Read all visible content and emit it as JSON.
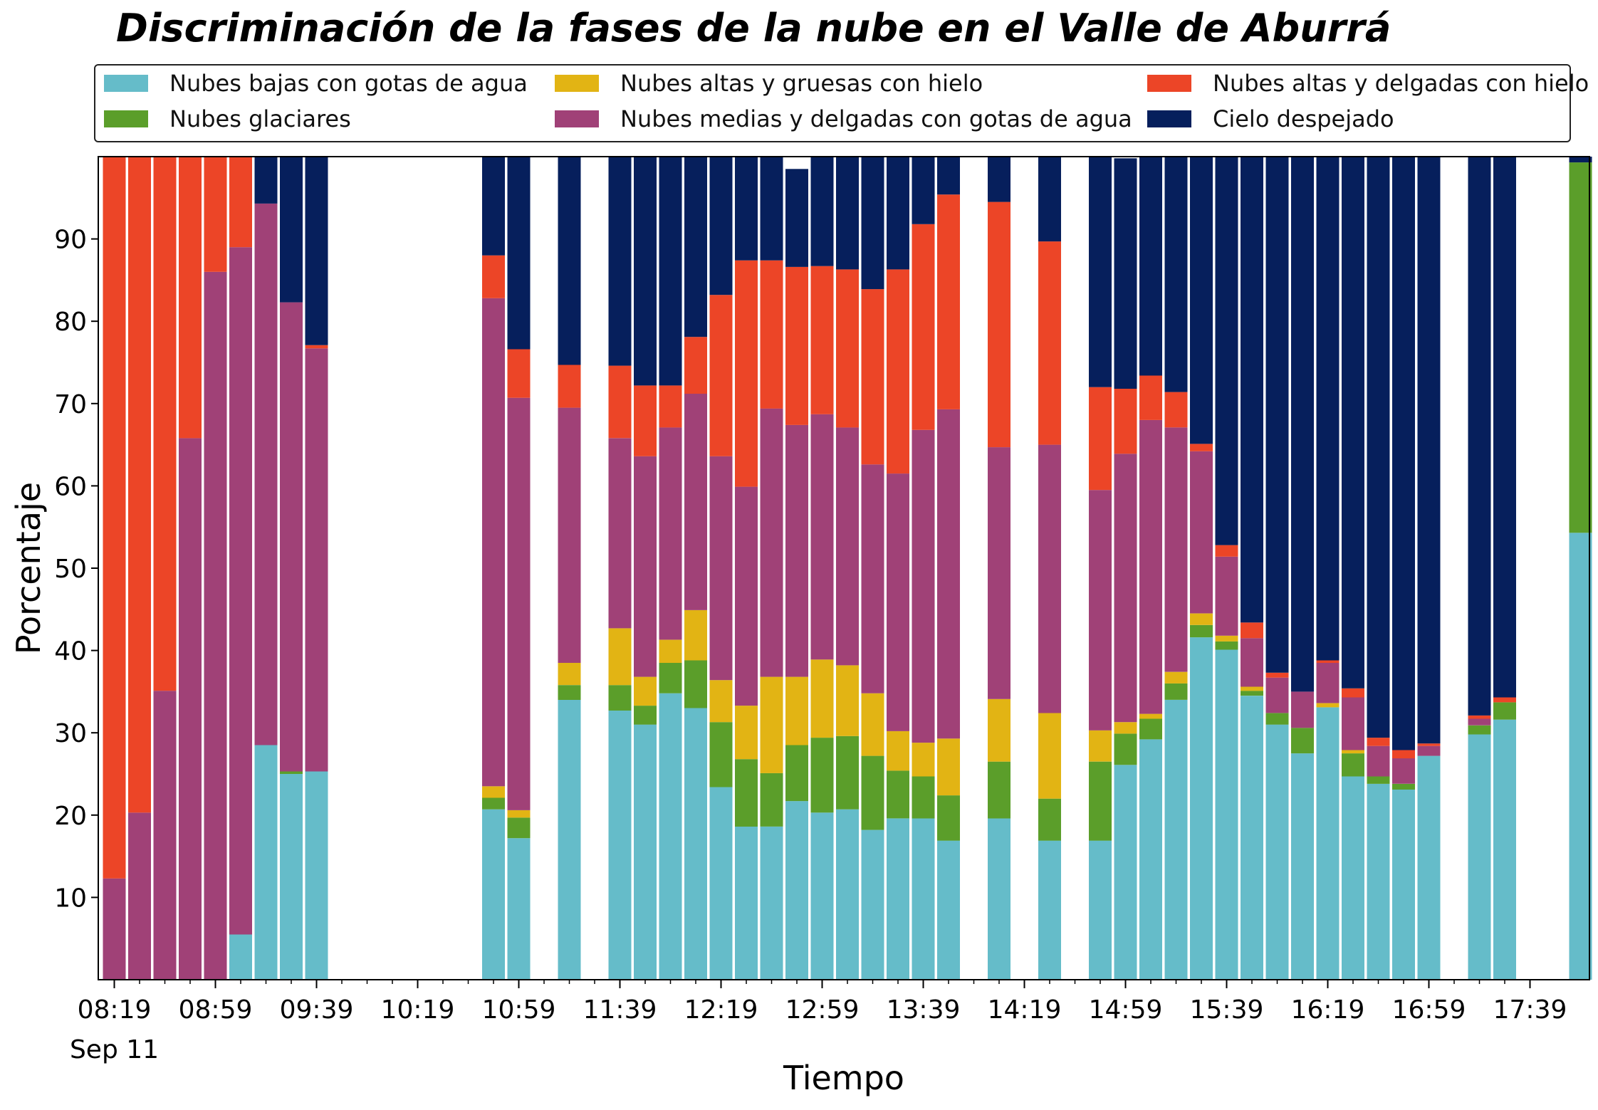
{
  "chart_data": {
    "type": "bar",
    "stacked": true,
    "title": "Discriminación de la fases de la nube en el Valle de Aburrá",
    "xlabel": "Tiempo",
    "ylabel": "Porcentaje",
    "ylim": [
      0,
      100
    ],
    "yticks": [
      10,
      20,
      30,
      40,
      50,
      60,
      70,
      80,
      90
    ],
    "xtick_labels": [
      "08:19",
      "08:59",
      "09:39",
      "10:19",
      "10:59",
      "11:39",
      "12:19",
      "12:59",
      "13:39",
      "14:19",
      "14:59",
      "15:39",
      "16:19",
      "16:59",
      "17:39"
    ],
    "xtick_date": "Sep 11",
    "legend_placement": "top",
    "slots": 59,
    "series": [
      {
        "name": "Nubes bajas con gotas de agua",
        "color": "#65bcc9",
        "values": [
          0,
          0,
          0,
          0,
          0,
          5.5,
          28.5,
          25,
          25.3,
          null,
          null,
          null,
          null,
          null,
          null,
          20.7,
          17.2,
          null,
          34,
          null,
          32.7,
          31,
          34.8,
          33,
          23.4,
          18.6,
          18.6,
          21.7,
          20.3,
          20.7,
          18.2,
          19.6,
          19.6,
          16.9,
          null,
          19.6,
          null,
          16.9,
          null,
          16.9,
          26.1,
          29.2,
          34,
          41.6,
          40.1,
          34.5,
          31,
          27.5,
          33.1,
          24.7,
          23.8,
          23.1,
          27.2,
          null,
          29.8,
          31.6,
          null,
          null,
          54.3
        ]
      },
      {
        "name": "Nubes glaciares",
        "color": "#5b9e2a",
        "values": [
          0,
          0,
          0,
          0,
          0,
          0,
          0,
          0.3,
          0,
          null,
          null,
          null,
          null,
          null,
          null,
          1.4,
          2.5,
          null,
          1.8,
          null,
          3.1,
          2.3,
          3.7,
          5.8,
          7.9,
          8.2,
          6.5,
          6.8,
          9.1,
          8.9,
          9,
          5.8,
          5.1,
          5.5,
          null,
          6.9,
          null,
          5.1,
          null,
          9.6,
          3.8,
          2.5,
          2,
          1.5,
          1,
          0.6,
          1.4,
          3.1,
          0,
          2.8,
          0.9,
          0.7,
          0,
          null,
          1.1,
          2.1,
          null,
          null,
          45
        ]
      },
      {
        "name": "Nubes altas y gruesas con hielo",
        "color": "#e2b414",
        "values": [
          0,
          0,
          0,
          0,
          0,
          0,
          0,
          0,
          0,
          null,
          null,
          null,
          null,
          null,
          null,
          1.4,
          0.9,
          null,
          2.7,
          null,
          6.9,
          3.5,
          2.8,
          6.1,
          5.1,
          6.5,
          11.7,
          8.3,
          9.5,
          8.6,
          7.6,
          4.8,
          4.1,
          6.9,
          null,
          7.6,
          null,
          10.4,
          null,
          3.8,
          1.4,
          0.6,
          1.4,
          1.4,
          0.7,
          0.5,
          0,
          0,
          0.5,
          0.4,
          0,
          0,
          0,
          null,
          0,
          0,
          null,
          null,
          0
        ]
      },
      {
        "name": "Nubes medias y delgadas con gotas de agua",
        "color": "#a04177",
        "values": [
          12.3,
          20.3,
          35.1,
          65.8,
          86,
          83.5,
          65.8,
          57,
          51.4,
          null,
          null,
          null,
          null,
          null,
          null,
          59.3,
          50.1,
          null,
          31,
          null,
          23.1,
          26.8,
          25.8,
          26.3,
          27.2,
          26.6,
          32.6,
          30.6,
          29.8,
          28.9,
          27.8,
          31.3,
          38,
          40,
          null,
          30.6,
          null,
          32.6,
          null,
          29.2,
          32.6,
          35.7,
          29.7,
          19.7,
          9.6,
          5.9,
          4.3,
          4.4,
          4.9,
          6.4,
          3.7,
          3.1,
          1.2,
          null,
          0.8,
          0,
          null,
          null,
          0
        ]
      },
      {
        "name": "Nubes altas y delgadas con hielo",
        "color": "#ec4527",
        "values": [
          87.7,
          79.7,
          64.9,
          34.2,
          14,
          11,
          0,
          0,
          0.4,
          null,
          null,
          null,
          null,
          null,
          null,
          5.2,
          5.9,
          null,
          5.2,
          null,
          8.8,
          8.6,
          5.1,
          6.9,
          19.6,
          27.5,
          18,
          19.2,
          18,
          19.2,
          21.3,
          24.8,
          25,
          26.1,
          null,
          29.8,
          null,
          24.7,
          null,
          12.5,
          7.9,
          5.4,
          4.3,
          0.9,
          1.4,
          1.9,
          0.6,
          0,
          0.3,
          1.1,
          1,
          1,
          0.3,
          null,
          0.4,
          0.6,
          null,
          null,
          0
        ]
      },
      {
        "name": "Cielo despejado",
        "color": "#061f5c",
        "values": [
          0,
          0,
          0,
          0,
          0,
          0,
          5.7,
          17.7,
          22.9,
          null,
          null,
          null,
          null,
          null,
          null,
          12,
          23.4,
          null,
          25.3,
          null,
          25.4,
          27.8,
          27.8,
          21.9,
          16.8,
          12.6,
          12.6,
          11.9,
          13.3,
          13.7,
          16.1,
          13.7,
          8.2,
          4.8,
          null,
          5.5,
          null,
          10.3,
          null,
          28,
          28,
          26.6,
          28.6,
          34.9,
          47.2,
          56.6,
          62.7,
          65,
          61.2,
          64.6,
          70.6,
          72.1,
          71.3,
          null,
          67.9,
          65.7,
          null,
          null,
          0.7
        ]
      }
    ]
  }
}
